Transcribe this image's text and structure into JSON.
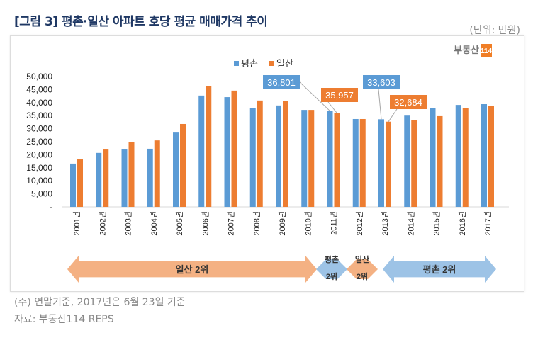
{
  "title": "[그림 3] 평촌·일산 아파트 호당 평균 매매가격 추이",
  "unit": "(단위: 만원)",
  "logo": {
    "text": "부동산",
    "badge": "114"
  },
  "notes": [
    "(주) 연말기준, 2017년은 6월 23일 기준",
    "자료: 부동산114 REPS"
  ],
  "colors": {
    "평촌": "#5b9bd5",
    "일산": "#ed7d31",
    "arrow_ilsan": "#f4b183",
    "arrow_pyeongchon": "#9dc3e6"
  },
  "chart_data": {
    "type": "bar",
    "categories": [
      "2001년",
      "2002년",
      "2003년",
      "2004년",
      "2005년",
      "2006년",
      "2007년",
      "2008년",
      "2009년",
      "2010년",
      "2011년",
      "2012년",
      "2013년",
      "2014년",
      "2015년",
      "2016년",
      "2017년"
    ],
    "series": [
      {
        "name": "평촌",
        "values": [
          16600,
          20700,
          22000,
          22300,
          28500,
          42700,
          42100,
          37800,
          38900,
          37200,
          36801,
          33700,
          33603,
          35000,
          38000,
          39100,
          39400
        ]
      },
      {
        "name": "일산",
        "values": [
          18200,
          22000,
          25000,
          25500,
          31800,
          46200,
          44600,
          40800,
          40500,
          37200,
          35957,
          33700,
          32684,
          33200,
          34800,
          38000,
          38600
        ]
      }
    ],
    "ylim": [
      0,
      50000
    ],
    "yticks": [
      "-",
      "5,000",
      "10,000",
      "15,000",
      "20,000",
      "25,000",
      "30,000",
      "35,000",
      "40,000",
      "45,000",
      "50,000"
    ],
    "legend": "top-center",
    "grid": false,
    "callouts": [
      {
        "series": "평촌",
        "category": "2011년",
        "label": "36,801"
      },
      {
        "series": "일산",
        "category": "2011년",
        "label": "35,957"
      },
      {
        "series": "평촌",
        "category": "2013년",
        "label": "33,603"
      },
      {
        "series": "일산",
        "category": "2013년",
        "label": "32,684"
      }
    ],
    "annotations": [
      {
        "label": "일산 2위",
        "from": "2001년",
        "to": "2010년",
        "series": "일산"
      },
      {
        "label": "평촌 2위",
        "from": "2011년",
        "to": "2011년",
        "series": "평촌"
      },
      {
        "label": "일산 2위",
        "from": "2012년",
        "to": "2012년",
        "series": "일산"
      },
      {
        "label": "평촌 2위",
        "from": "2013년",
        "to": "2017년",
        "series": "평촌"
      }
    ]
  }
}
